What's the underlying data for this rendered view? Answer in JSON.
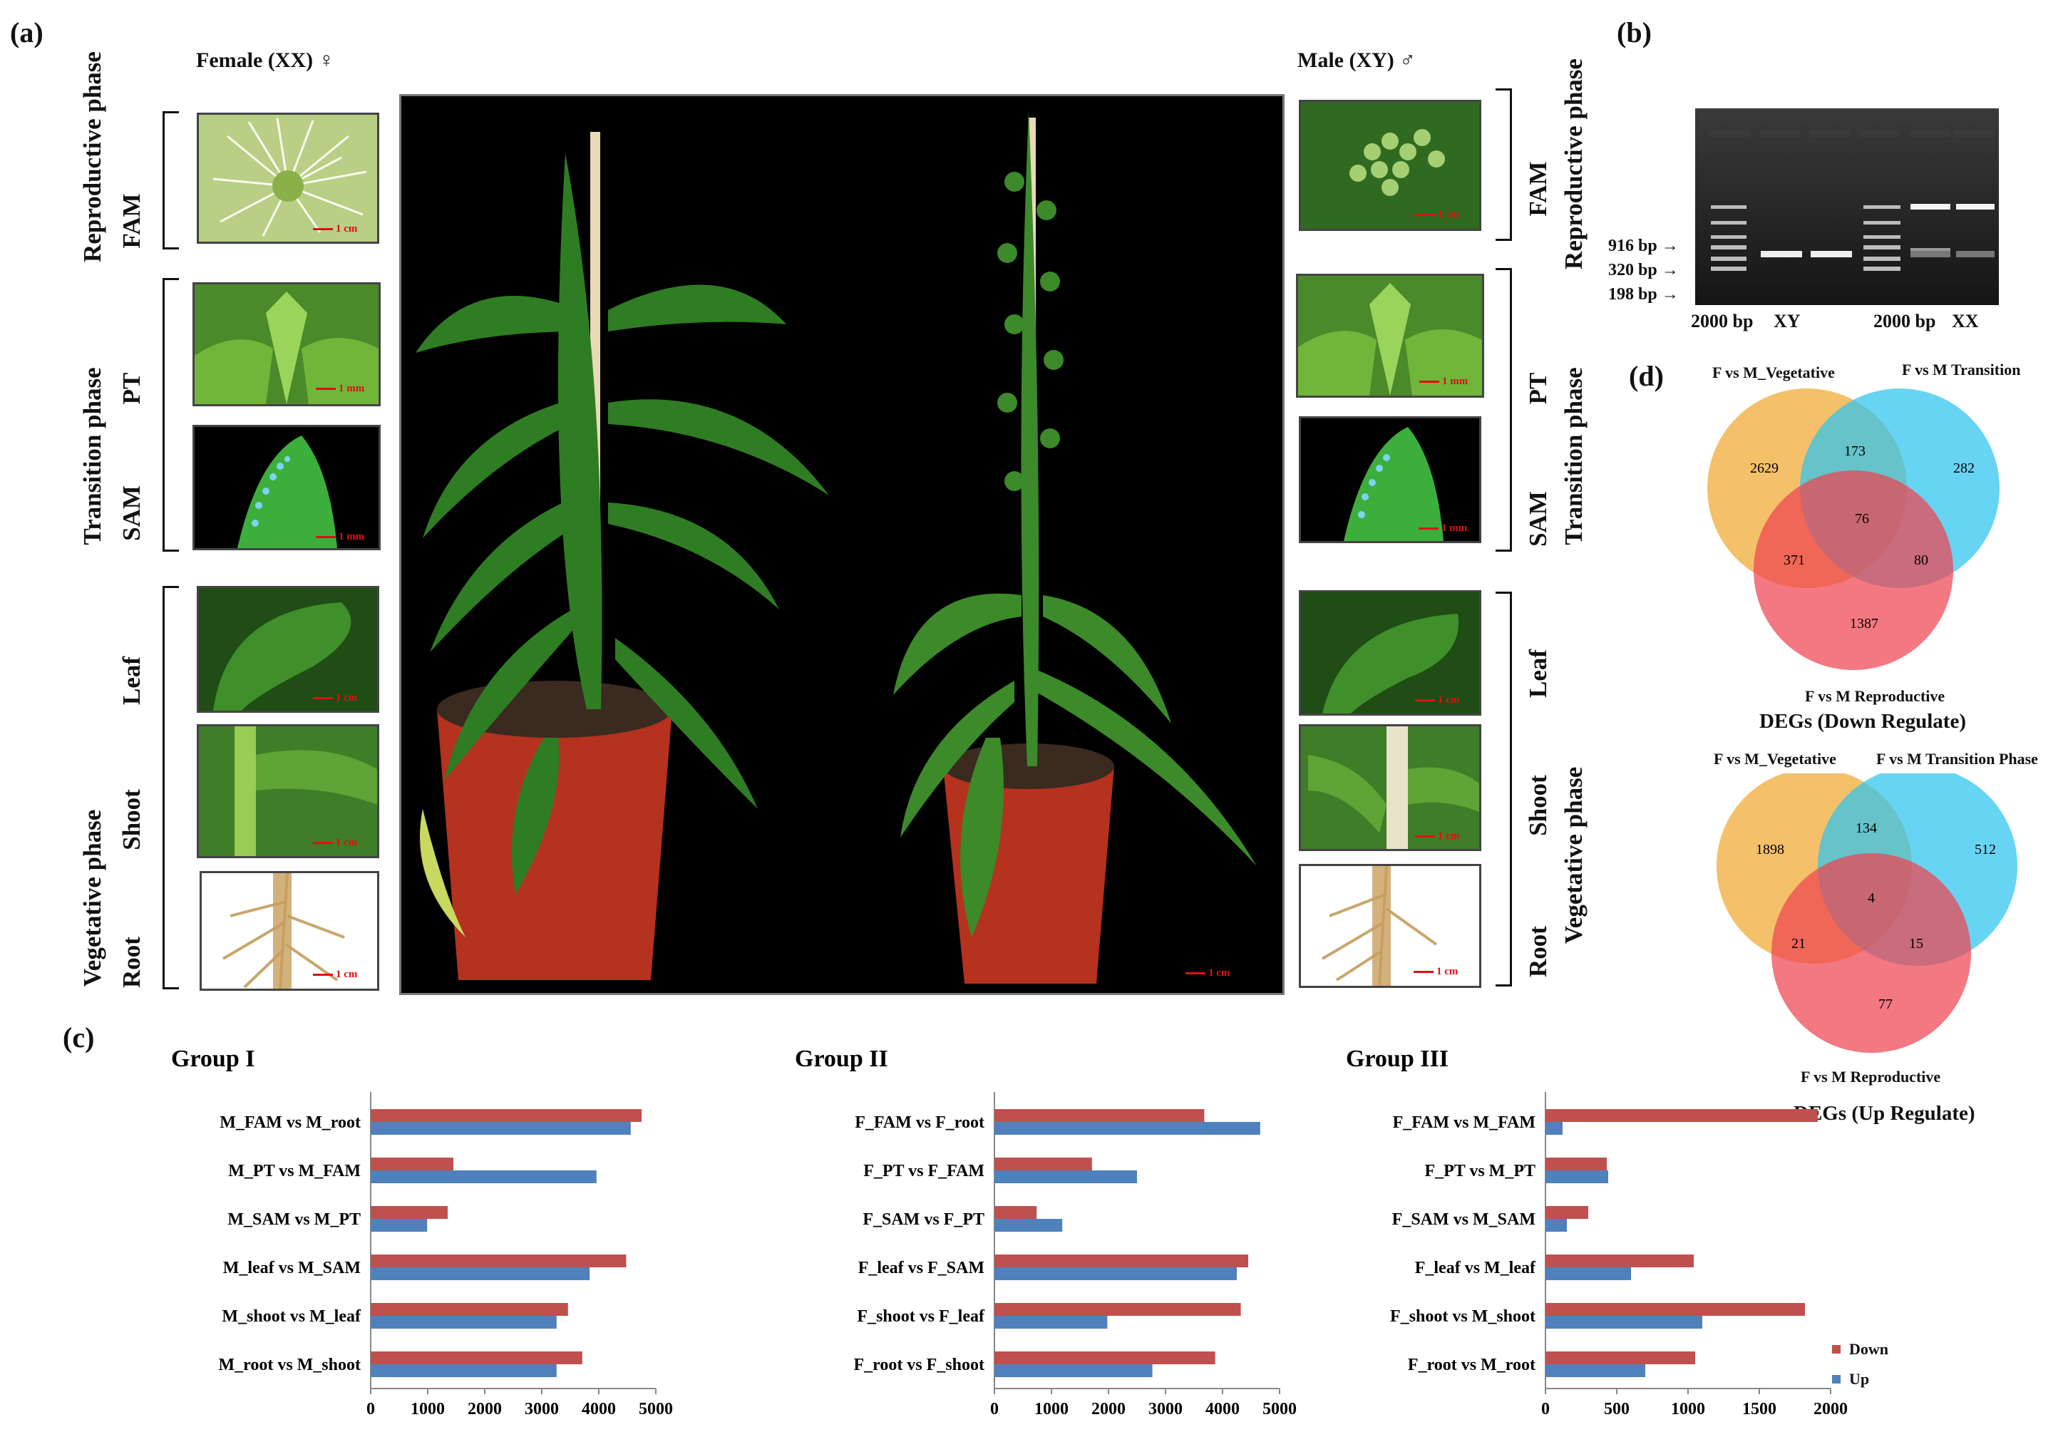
{
  "labels": {
    "a": "(a)",
    "b": "(b)",
    "c": "(c)",
    "d": "(d)"
  },
  "panel_a": {
    "female_heading": "Female (XX) ♀",
    "male_heading": "Male (XY) ♂",
    "phases": {
      "reproductive": "Reproductive phase",
      "transition": "Transition phase",
      "vegetative": "Vegetative phase"
    },
    "tissues": {
      "fam": "FAM",
      "pt": "PT",
      "sam": "SAM",
      "leaf": "Leaf",
      "shoot": "Shoot",
      "root": "Root"
    },
    "scales": {
      "one_cm": "1 cm",
      "one_mm": "1 mm"
    },
    "colors": {
      "photo_background": "#000000",
      "leaf_green": "#2f7d23",
      "pot_red": "#b5321e",
      "scale_red": "#e01010"
    }
  },
  "panel_b": {
    "marker_labels": [
      "916 bp",
      "320 bp",
      "198 bp"
    ],
    "lane_labels": [
      "2000 bp",
      "XY",
      "2000 bp",
      "XX"
    ]
  },
  "panel_d": {
    "down": {
      "set_labels": [
        "F vs M_Vegetative",
        "F vs M Transition",
        "F vs M Reproductive"
      ],
      "counts": {
        "veg_only": "2629",
        "veg_trans": "173",
        "trans_only": "282",
        "all": "76",
        "veg_rep": "371",
        "trans_rep": "80",
        "rep_only": "1387"
      },
      "caption": "DEGs (Down Regulate)"
    },
    "up": {
      "set_labels": [
        "F vs M_Vegetative",
        "F vs M Transition Phase",
        "F vs M Reproductive"
      ],
      "counts": {
        "veg_only": "1898",
        "veg_trans": "134",
        "trans_only": "512",
        "all": "4",
        "veg_rep": "21",
        "trans_rep": "15",
        "rep_only": "77"
      },
      "caption": "DEGs (Up Regulate)"
    },
    "colors": {
      "vegetative": "#f0a830",
      "transition": "#2ec3ee",
      "reproductive": "#ee4450"
    }
  },
  "chart_data": [
    {
      "type": "bar",
      "orientation": "horizontal",
      "title": "Group I",
      "categories": [
        "M_FAM vs M_root",
        "M_PT vs M_FAM",
        "M_SAM vs M_PT",
        "M_leaf vs M_SAM",
        "M_shoot vs M_leaf",
        "M_root vs M_shoot"
      ],
      "series": [
        {
          "name": "Down",
          "color": "#c0504d",
          "values": [
            4750,
            1450,
            1350,
            4480,
            3460,
            3710
          ]
        },
        {
          "name": "Up",
          "color": "#4f81bd",
          "values": [
            4560,
            3960,
            990,
            3840,
            3260,
            3260
          ]
        }
      ],
      "xlim": [
        0,
        5000
      ],
      "xticks": [
        "0",
        "1000",
        "2000",
        "3000",
        "4000",
        "5000"
      ]
    },
    {
      "type": "bar",
      "orientation": "horizontal",
      "title": "Group II",
      "categories": [
        "F_FAM vs F_root",
        "F_PT vs F_FAM",
        "F_SAM vs F_PT",
        "F_leaf vs F_SAM",
        "F_shoot vs F_leaf",
        "F_root vs F_shoot"
      ],
      "series": [
        {
          "name": "Down",
          "color": "#c0504d",
          "values": [
            3680,
            1710,
            740,
            4450,
            4320,
            3870
          ]
        },
        {
          "name": "Up",
          "color": "#4f81bd",
          "values": [
            4660,
            2500,
            1190,
            4250,
            1980,
            2770
          ]
        }
      ],
      "xlim": [
        0,
        5000
      ],
      "xticks": [
        "0",
        "1000",
        "2000",
        "3000",
        "4000",
        "5000"
      ]
    },
    {
      "type": "bar",
      "orientation": "horizontal",
      "title": "Group III",
      "categories": [
        "F_FAM vs M_FAM",
        "F_PT vs M_PT",
        "F_SAM vs M_SAM",
        "F_leaf vs M_leaf",
        "F_shoot vs M_shoot",
        "F_root vs M_root"
      ],
      "series": [
        {
          "name": "Down",
          "color": "#c0504d",
          "values": [
            1910,
            430,
            300,
            1040,
            1820,
            1050
          ]
        },
        {
          "name": "Up",
          "color": "#4f81bd",
          "values": [
            120,
            440,
            150,
            600,
            1100,
            700
          ]
        }
      ],
      "xlim": [
        0,
        2000
      ],
      "xticks": [
        "0",
        "500",
        "1000",
        "1500",
        "2000"
      ],
      "legend": "bottom-right"
    }
  ]
}
